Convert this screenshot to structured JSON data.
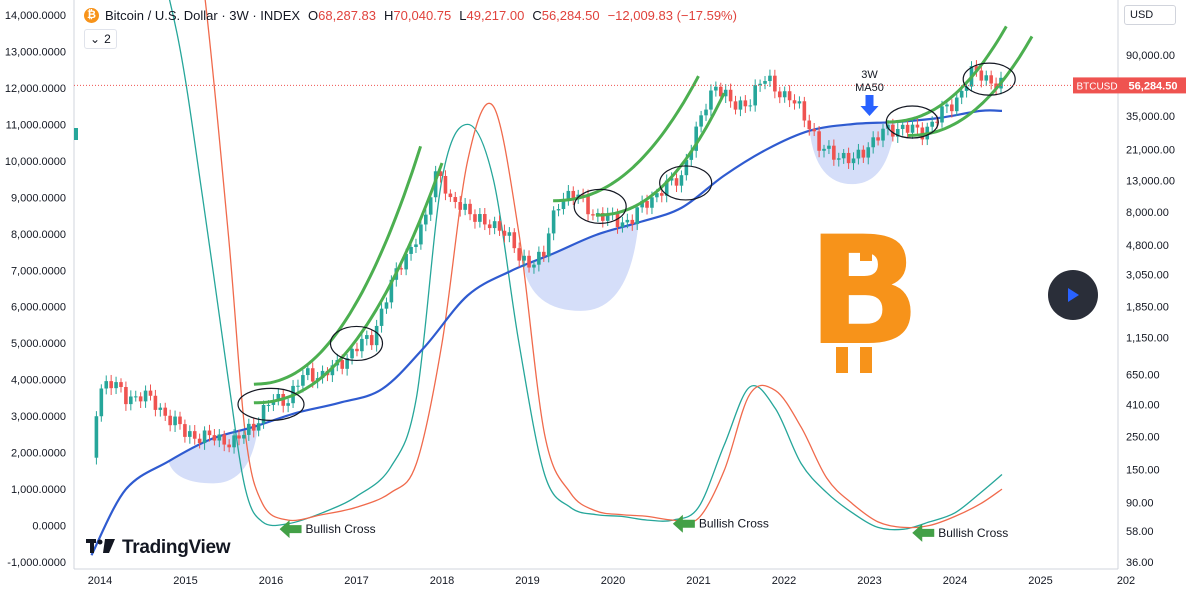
{
  "header": {
    "symbol": "Bitcoin / U.S. Dollar · 3W · INDEX",
    "open_label": "O",
    "open": "68,287.83",
    "high_label": "H",
    "high": "70,040.75",
    "low_label": "L",
    "low": "49,217.00",
    "close_label": "C",
    "close": "56,284.50",
    "change": "−12,009.83 (−17.59%)",
    "btc_glyph": "₿"
  },
  "indicator_count": "2",
  "currency": "USD",
  "branding": {
    "logo_mark": "17",
    "name": "TradingView"
  },
  "price_tag": {
    "symbol": "BTCUSD",
    "price": "56,284.50"
  },
  "colors": {
    "up": "#26a69a",
    "down": "#ef5350",
    "ma": "#2962ff",
    "ma_line": "#2f5bd0",
    "channel": "#4caf50",
    "osc_fast": "#26a69a",
    "osc_slow": "#f06a4c",
    "bitcoin": "#f7931a",
    "fill": "#c7d3f7"
  },
  "chart_data": {
    "type": "line",
    "x_ticks": [
      "2014",
      "2015",
      "2016",
      "2017",
      "2018",
      "2019",
      "2020",
      "2021",
      "2022",
      "2023",
      "2024",
      "2025",
      "202"
    ],
    "left_axis_ticks": [
      "14,000.0000",
      "13,000.0000",
      "12,000.0000",
      "11,000.0000",
      "10,000.0000",
      "9,000.0000",
      "8,000.0000",
      "7,000.0000",
      "6,000.0000",
      "5,000.0000",
      "4,000.0000",
      "3,000.0000",
      "2,000.0000",
      "1,000.0000",
      "0.0000",
      "-1,000.0000"
    ],
    "right_axis_ticks": [
      "90,000.00",
      "35,000.00",
      "21,000.00",
      "13,000.00",
      "8,000.00",
      "4,800.00",
      "3,050.00",
      "1,850.00",
      "1,150.00",
      "650.00",
      "410.00",
      "250.00",
      "150.00",
      "90.00",
      "58.00",
      "36.00"
    ],
    "right_axis_values": [
      90000,
      35000,
      21000,
      13000,
      8000,
      4800,
      3050,
      1850,
      1150,
      650,
      410,
      250,
      150,
      90,
      58,
      36
    ],
    "left_axis_values": [
      14000,
      13000,
      12000,
      11000,
      10000,
      9000,
      8000,
      7000,
      6000,
      5000,
      4000,
      3000,
      2000,
      1000,
      0,
      -1000
    ],
    "scale": "log",
    "price_series": {
      "name": "BTCUSD",
      "x": [
        2013.9,
        2014.0,
        2014.1,
        2014.3,
        2014.5,
        2014.7,
        2014.9,
        2015.0,
        2015.2,
        2015.4,
        2015.6,
        2015.8,
        2016.0,
        2016.2,
        2016.4,
        2016.6,
        2016.8,
        2017.0,
        2017.2,
        2017.4,
        2017.6,
        2017.8,
        2017.95,
        2018.1,
        2018.3,
        2018.5,
        2018.7,
        2018.9,
        2019.0,
        2019.2,
        2019.4,
        2019.6,
        2019.8,
        2020.0,
        2020.2,
        2020.4,
        2020.6,
        2020.8,
        2021.0,
        2021.2,
        2021.4,
        2021.6,
        2021.8,
        2022.0,
        2022.2,
        2022.4,
        2022.6,
        2022.8,
        2023.0,
        2023.2,
        2023.4,
        2023.6,
        2023.8,
        2024.0,
        2024.2,
        2024.4,
        2024.55
      ],
      "close": [
        180,
        520,
        600,
        450,
        480,
        380,
        300,
        260,
        250,
        240,
        230,
        300,
        430,
        450,
        650,
        650,
        750,
        1000,
        1150,
        2500,
        4300,
        6500,
        16000,
        9000,
        8500,
        6400,
        6500,
        3800,
        3700,
        4100,
        10500,
        10000,
        7500,
        7200,
        6800,
        9500,
        11500,
        13800,
        29000,
        58000,
        40000,
        45000,
        64000,
        47000,
        40000,
        21000,
        20000,
        17000,
        23000,
        28000,
        30000,
        26500,
        35000,
        43000,
        69000,
        62000,
        56284.5
      ]
    },
    "ma50": {
      "name": "MA50",
      "x": [
        2013.9,
        2014.3,
        2014.8,
        2015.3,
        2015.8,
        2016.3,
        2016.8,
        2017.3,
        2017.8,
        2018.3,
        2018.8,
        2019.3,
        2019.8,
        2020.3,
        2020.8,
        2021.3,
        2021.8,
        2022.3,
        2022.8,
        2023.3,
        2023.8,
        2024.3,
        2024.55
      ],
      "values": [
        40,
        110,
        170,
        240,
        290,
        360,
        420,
        520,
        1000,
        2200,
        3200,
        4200,
        5600,
        6800,
        8500,
        14000,
        21000,
        28000,
        31000,
        32000,
        34000,
        38000,
        38000
      ]
    },
    "oscillator": {
      "x": [
        2014.0,
        2014.5,
        2014.9,
        2015.2,
        2015.5,
        2015.7,
        2015.9,
        2016.2,
        2016.6,
        2017.0,
        2017.4,
        2017.7,
        2018.0,
        2018.3,
        2018.6,
        2018.9,
        2019.2,
        2019.5,
        2019.8,
        2020.1,
        2020.4,
        2020.7,
        2021.0,
        2021.3,
        2021.6,
        2021.9,
        2022.2,
        2022.5,
        2022.8,
        2023.1,
        2023.4,
        2023.7,
        2024.0,
        2024.3,
        2024.55
      ],
      "fast": [
        20000,
        17000,
        13500,
        9000,
        4000,
        1000,
        100,
        50,
        350,
        800,
        1600,
        3500,
        9500,
        11000,
        9500,
        5000,
        1400,
        500,
        300,
        250,
        150,
        150,
        500,
        2200,
        3800,
        3200,
        1700,
        900,
        350,
        -50,
        -100,
        100,
        350,
        900,
        1400
      ],
      "slow": [
        22000,
        21000,
        19000,
        15000,
        8000,
        2500,
        600,
        150,
        300,
        500,
        900,
        1700,
        5000,
        10000,
        11500,
        8000,
        2500,
        900,
        400,
        300,
        250,
        150,
        200,
        1500,
        3600,
        3700,
        2700,
        1300,
        600,
        100,
        -50,
        0,
        250,
        600,
        1000
      ]
    },
    "annotations": [
      "3W",
      "MA50",
      "Bullish Cross",
      "Bullish Cross",
      "Bullish Cross"
    ]
  }
}
